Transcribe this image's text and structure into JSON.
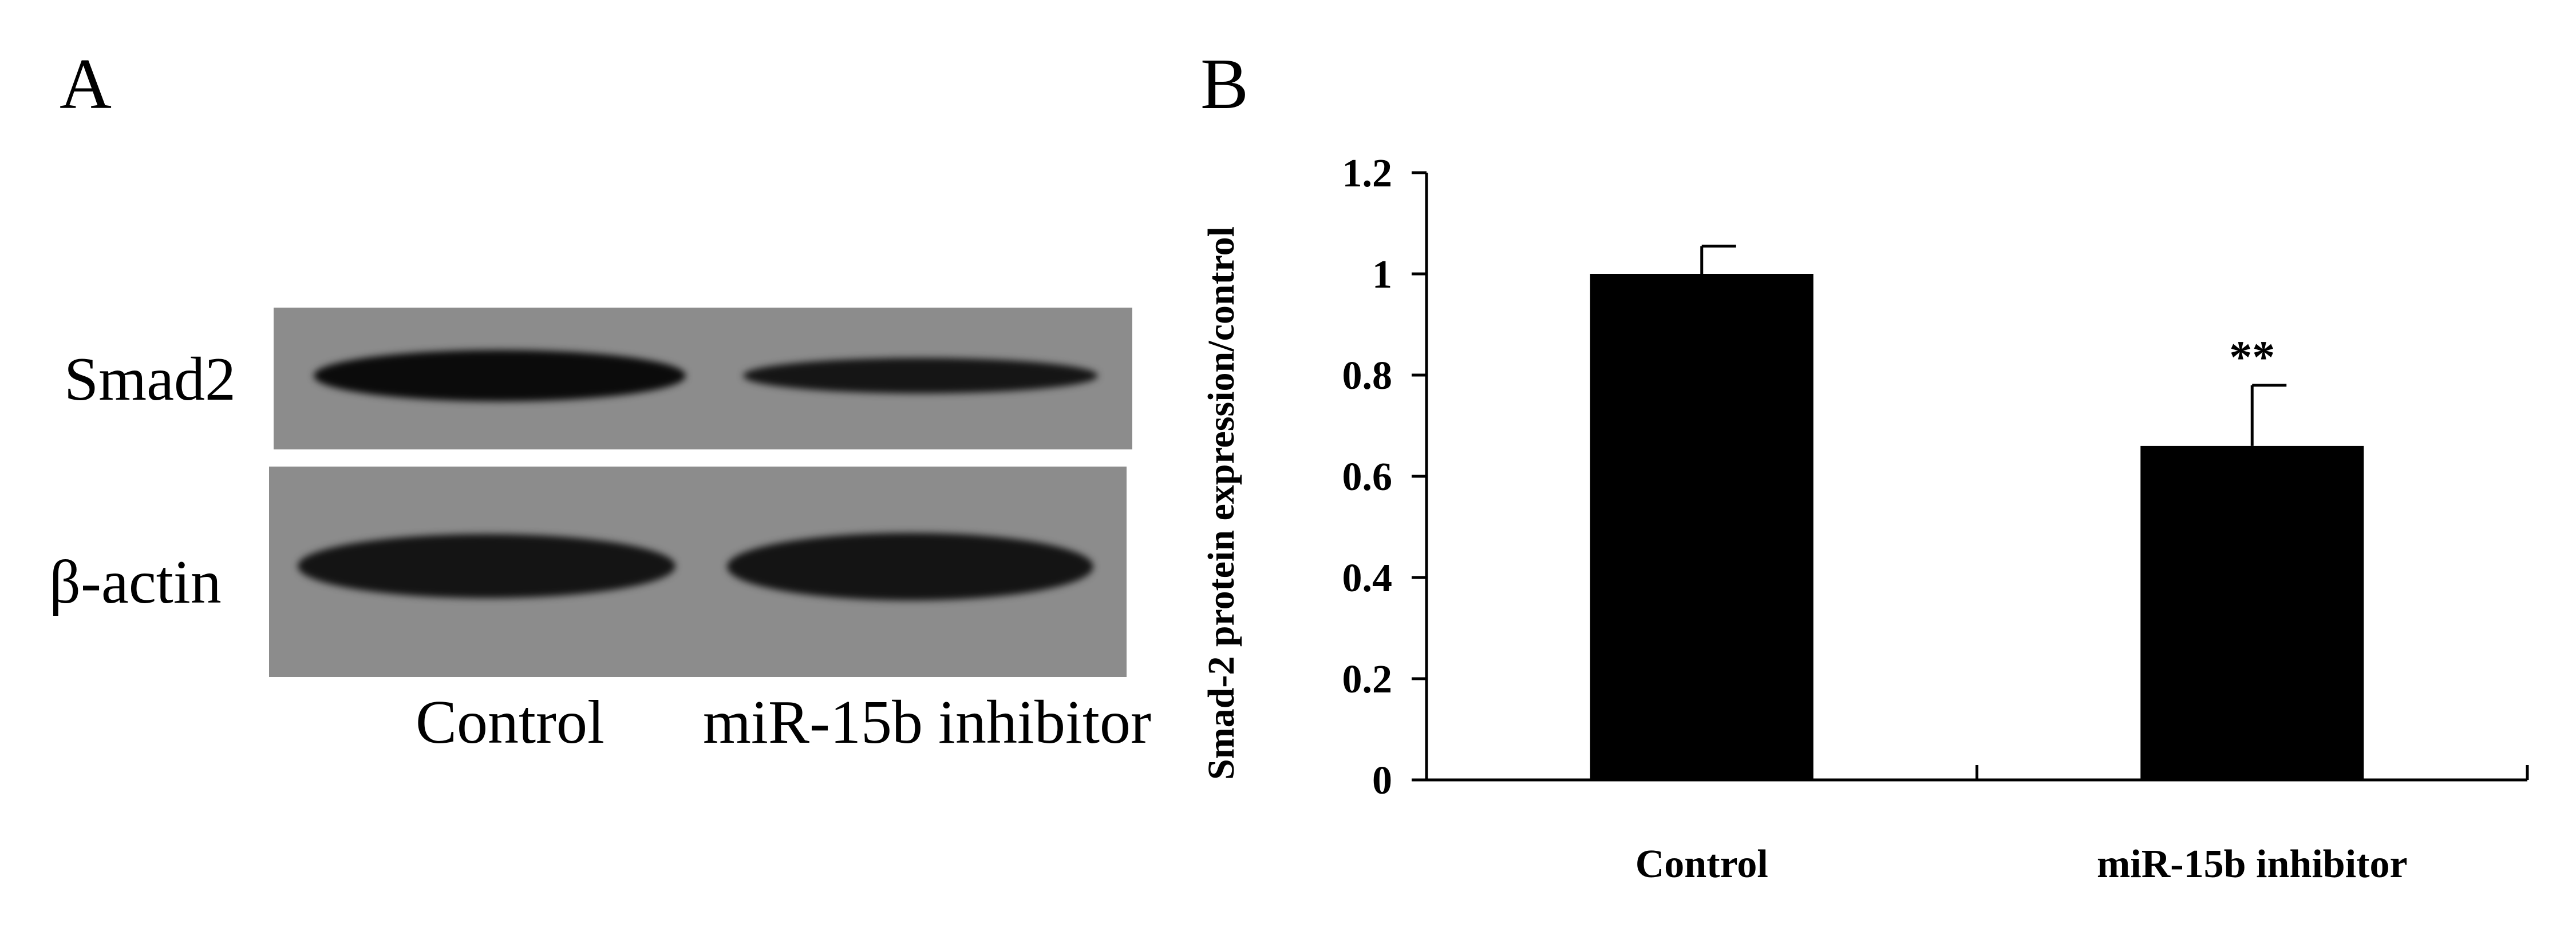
{
  "panel_a": {
    "letter": "A",
    "rows": [
      {
        "id": "smad2",
        "label": "Smad2"
      },
      {
        "id": "actin",
        "label": "β-actin"
      }
    ],
    "lanes": [
      "Control",
      "miR-15b inhibitor"
    ]
  },
  "panel_b": {
    "letter": "B"
  },
  "chart_data": {
    "type": "bar",
    "categories": [
      "Control",
      "miR-15b inhibitor"
    ],
    "values": [
      1.0,
      0.66
    ],
    "error": [
      0.055,
      0.12
    ],
    "annotations": [
      "",
      "**"
    ],
    "ylabel": "Smad-2 protein expression/control",
    "xlabel": "",
    "title": "",
    "ylim": [
      0,
      1.2
    ],
    "yticks": [
      0,
      0.2,
      0.4,
      0.6,
      0.8,
      1,
      1.2
    ],
    "ytick_labels": [
      "0",
      "0.2",
      "0.4",
      "0.6",
      "0.8",
      "1",
      "1.2"
    ],
    "bar_color": "#000000",
    "grid": false,
    "legend": "none"
  }
}
